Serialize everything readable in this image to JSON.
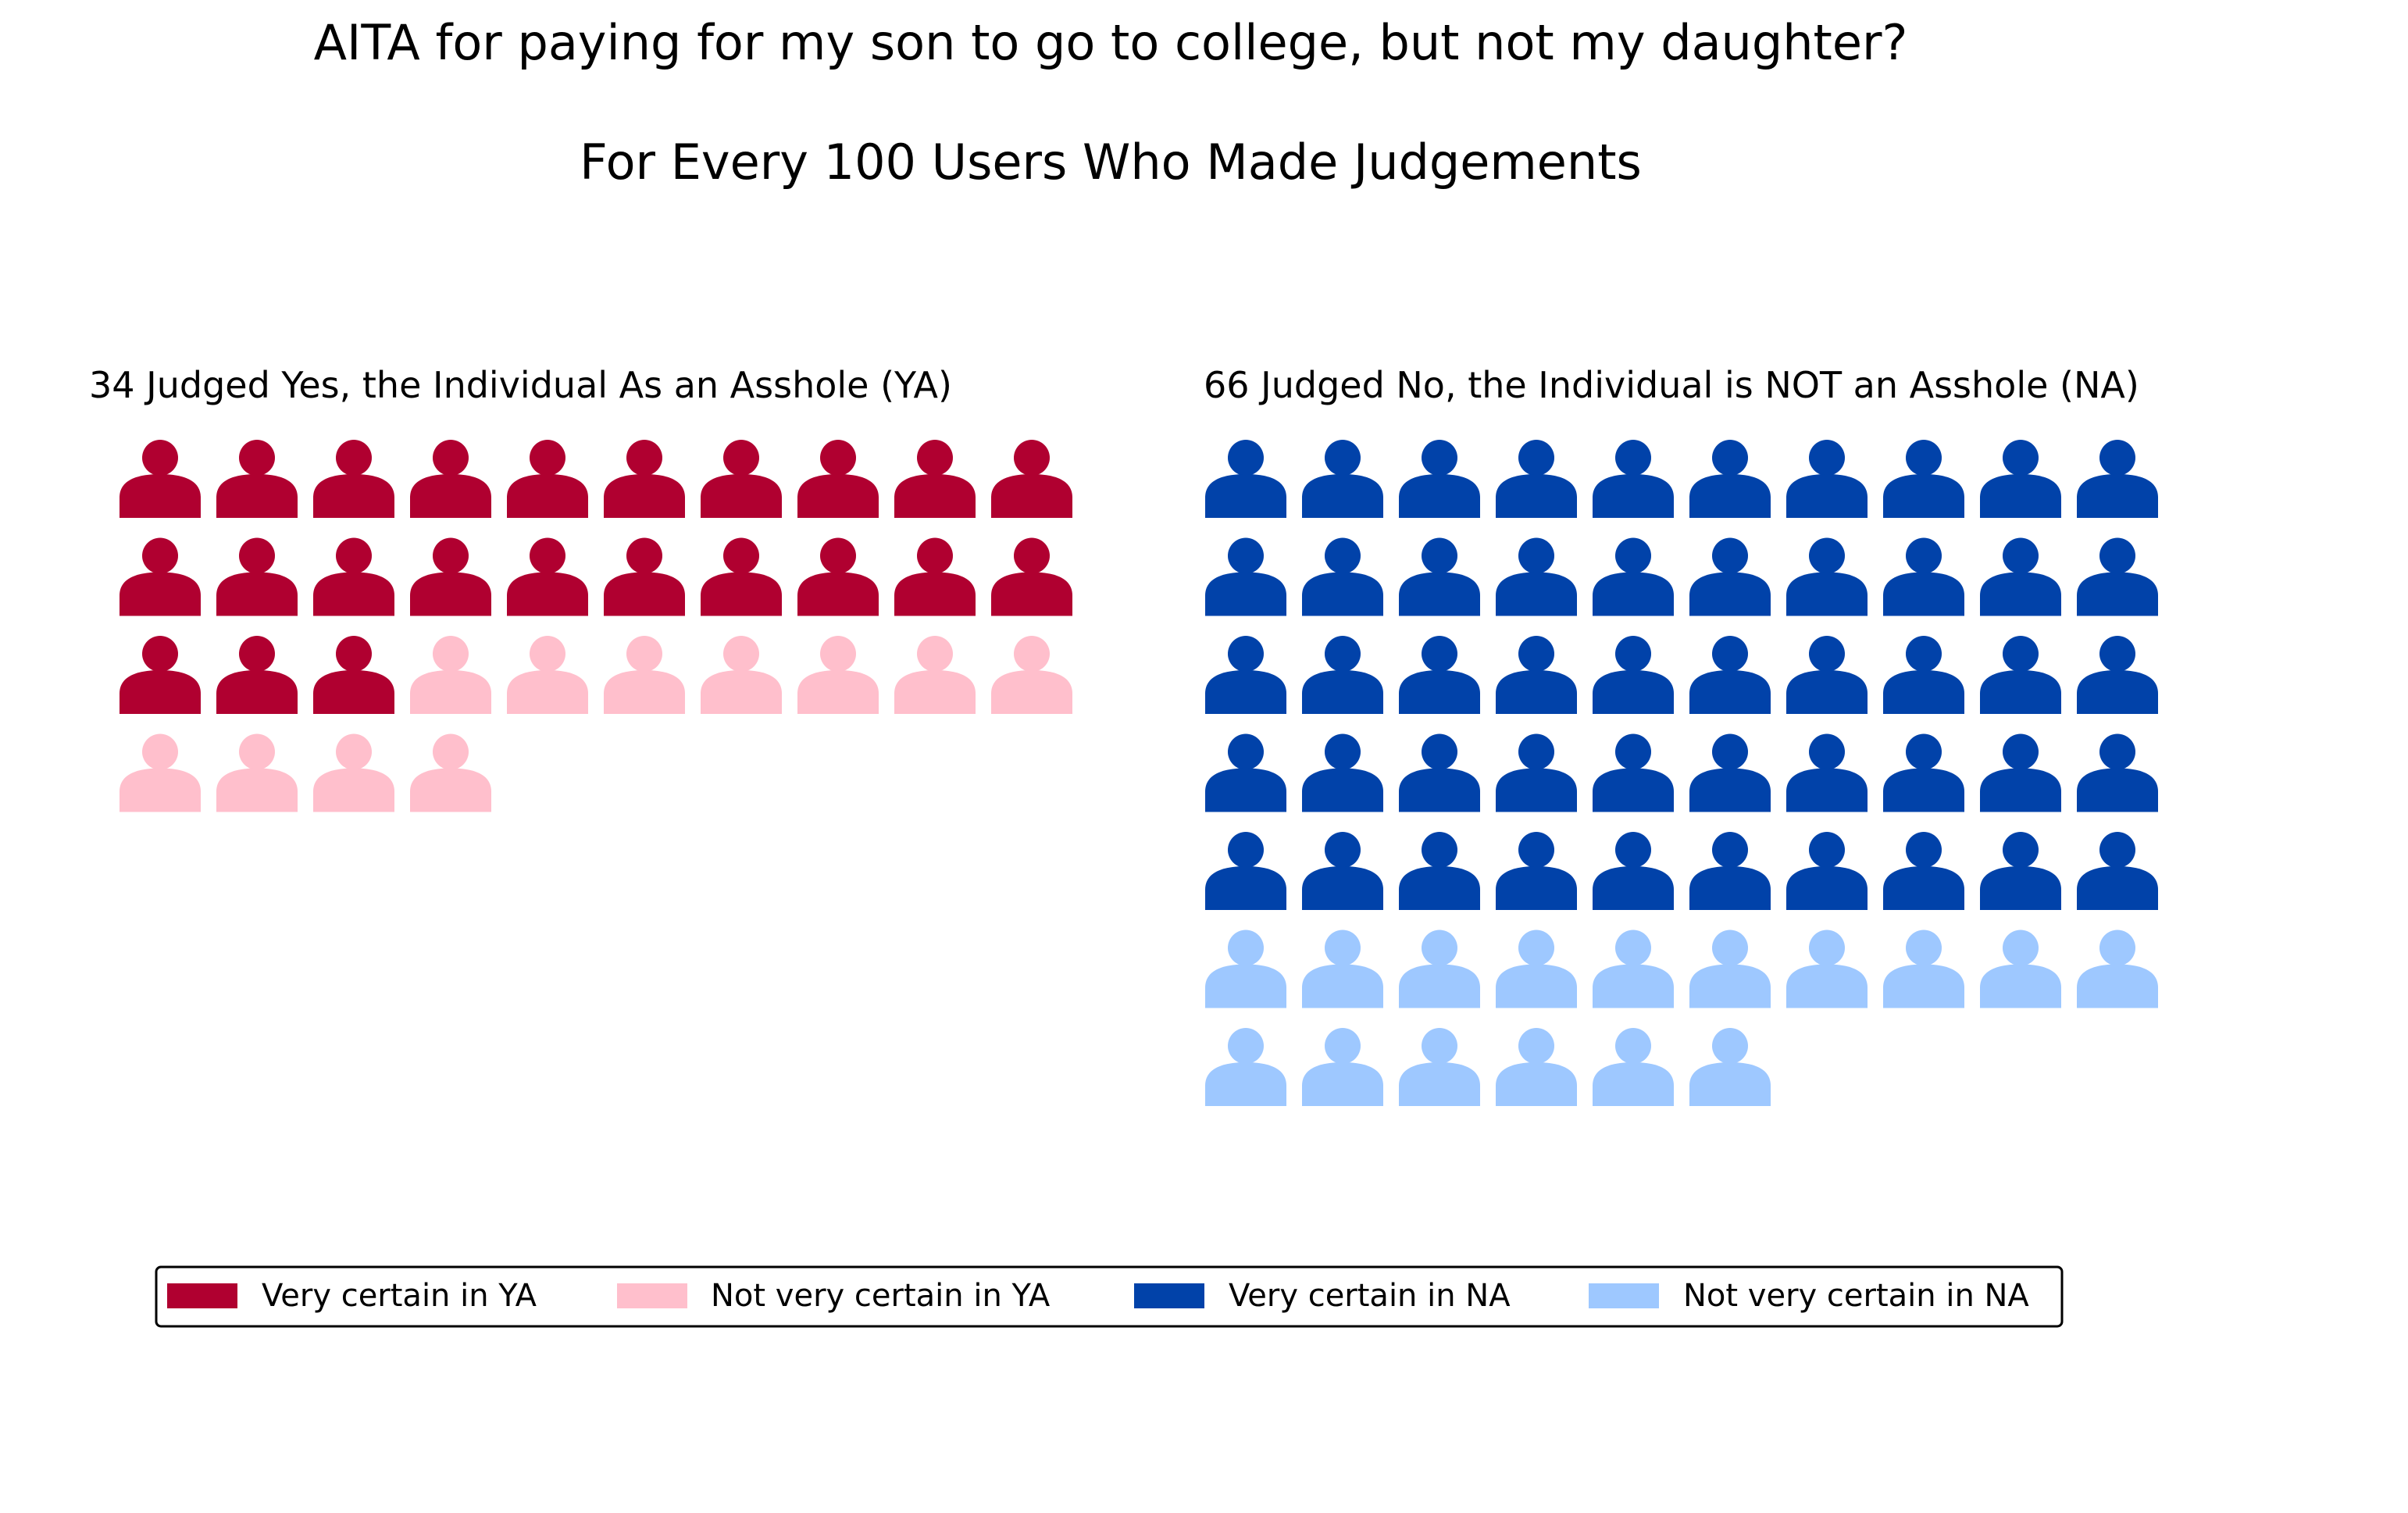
{
  "title": "AITA for paying for my son to go to college, but not my daughter?",
  "subtitle": "For Every 100 Users Who Made Judgements",
  "chart_data": {
    "type": "waffle",
    "panels": [
      {
        "key": "ya",
        "title": "34 Judged Yes, the Individual As an Asshole (YA)",
        "total": 34,
        "series": [
          {
            "name": "Very certain in YA",
            "value": 23,
            "color": "#b00030"
          },
          {
            "name": "Not very certain in YA",
            "value": 11,
            "color": "#ffbfcc"
          }
        ]
      },
      {
        "key": "na",
        "title": "66 Judged No, the Individual is NOT an Asshole (NA)",
        "total": 66,
        "series": [
          {
            "name": "Very certain in NA",
            "value": 50,
            "color": "#0142a9"
          },
          {
            "name": "Not very certain in NA",
            "value": 16,
            "color": "#9ec8ff"
          }
        ]
      }
    ],
    "icons_per_row": 10,
    "icon": "person-icon",
    "legend": {
      "placement": "bottom",
      "entries": [
        {
          "label": "Very certain in YA",
          "color": "#b00030"
        },
        {
          "label": "Not very certain in YA",
          "color": "#ffbfcc"
        },
        {
          "label": "Very certain in NA",
          "color": "#0142a9"
        },
        {
          "label": "Not very certain in NA",
          "color": "#9ec8ff"
        }
      ]
    }
  }
}
